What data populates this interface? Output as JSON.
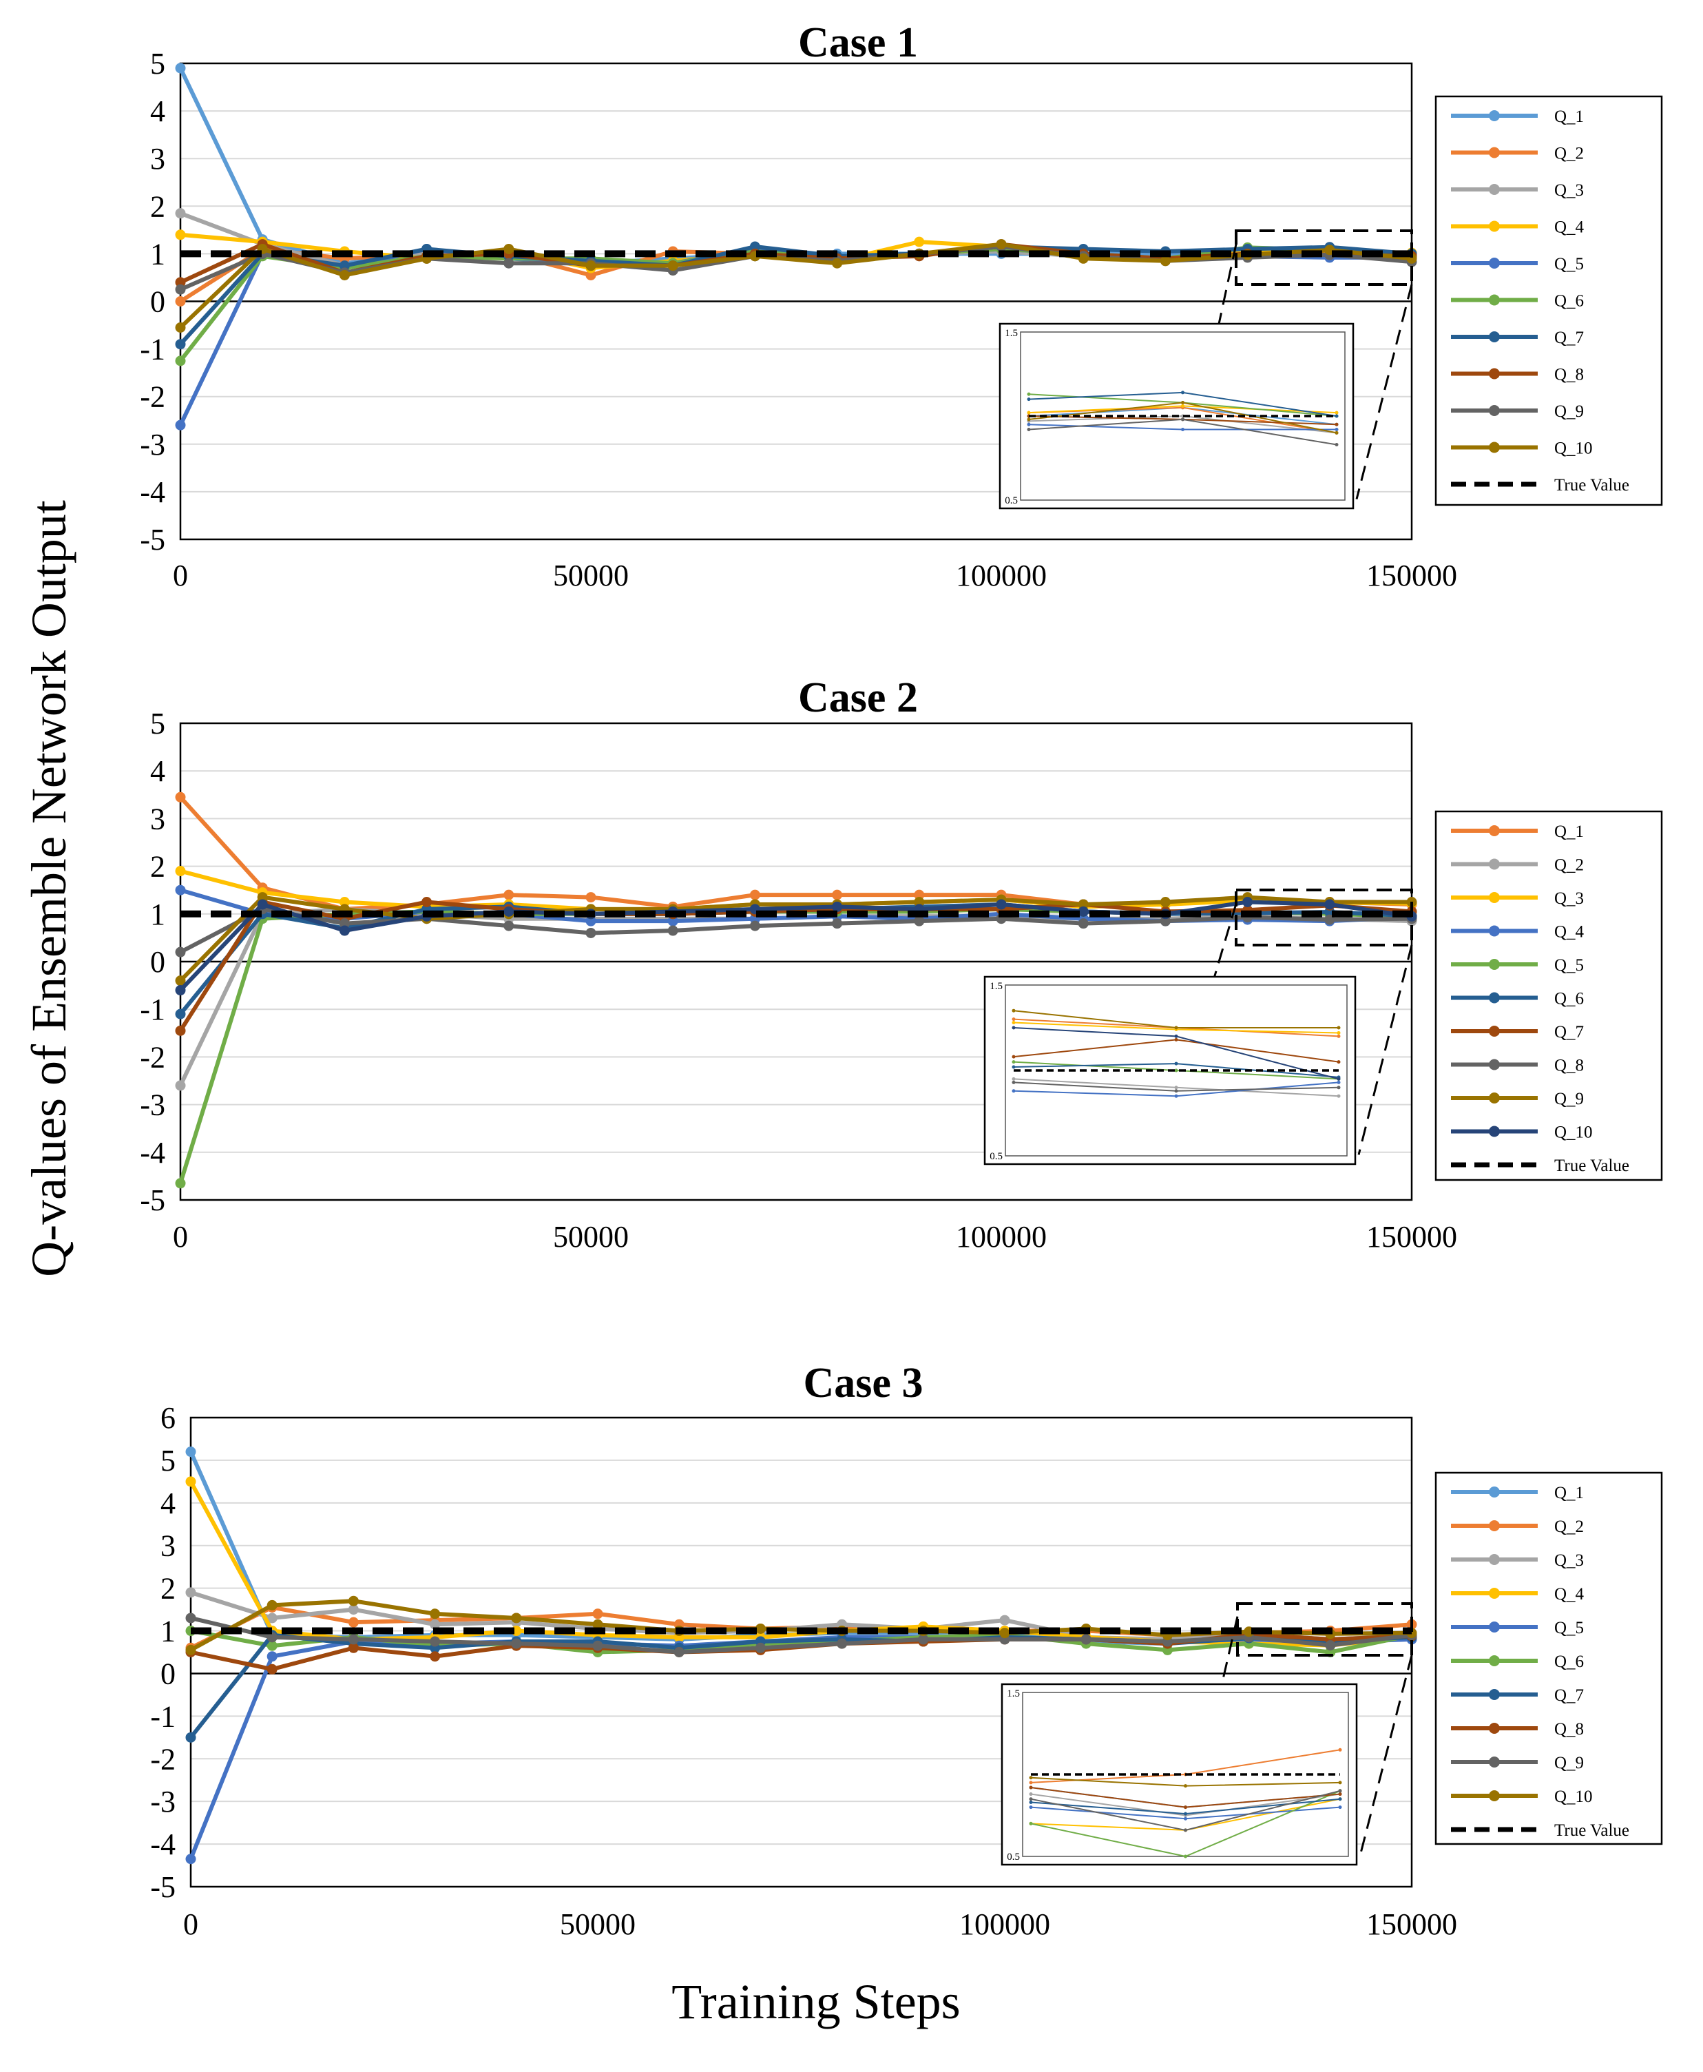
{
  "figure": {
    "ylabel": "Q-values of Ensemble Network Output",
    "xlabel": "Training Steps"
  },
  "chart_data": [
    {
      "type": "line",
      "title": "Case 1",
      "x": [
        0,
        10000,
        20000,
        30000,
        40000,
        50000,
        60000,
        70000,
        80000,
        90000,
        100000,
        110000,
        120000,
        130000,
        140000,
        150000
      ],
      "ylim": [
        -5,
        5
      ],
      "yticks": [
        -5,
        -4,
        -3,
        -2,
        -1,
        0,
        1,
        2,
        3,
        4,
        5
      ],
      "xlim": [
        0,
        150000
      ],
      "xticks": [
        0,
        50000,
        100000,
        150000
      ],
      "grid": true,
      "legend_position": "right",
      "true_value": 1,
      "true_value_label": "True Value",
      "inset": {
        "x_from": 130000,
        "ylim": [
          0.5,
          1.5
        ],
        "y_tick_labels": [
          "1.5",
          "0.5"
        ]
      },
      "series": [
        {
          "name": "Q_1",
          "color": "#5b9bd5",
          "values": [
            4.9,
            1.3,
            0.8,
            1.0,
            0.9,
            0.8,
            0.9,
            1.0,
            1.0,
            1.0,
            1.0,
            1.0,
            1.0,
            1.0,
            1.05,
            0.95
          ]
        },
        {
          "name": "Q_2",
          "color": "#ed7d31",
          "values": [
            0.0,
            1.1,
            0.9,
            1.0,
            1.0,
            0.55,
            1.05,
            1.0,
            0.9,
            1.0,
            1.1,
            1.0,
            0.9,
            1.02,
            1.05,
            0.9
          ]
        },
        {
          "name": "Q_3",
          "color": "#a5a5a5",
          "values": [
            1.85,
            1.2,
            0.75,
            1.0,
            0.95,
            0.8,
            0.8,
            1.0,
            0.9,
            1.0,
            1.05,
            0.95,
            0.9,
            0.97,
            1.0,
            0.9
          ]
        },
        {
          "name": "Q_4",
          "color": "#ffc000",
          "values": [
            1.4,
            1.25,
            1.05,
            0.9,
            1.05,
            0.7,
            0.85,
            1.0,
            0.85,
            1.25,
            1.15,
            1.0,
            0.9,
            1.02,
            1.06,
            1.02
          ]
        },
        {
          "name": "Q_5",
          "color": "#4472c4",
          "values": [
            -2.6,
            1.0,
            0.7,
            1.1,
            0.9,
            0.85,
            0.8,
            1.1,
            0.9,
            1.0,
            1.1,
            1.0,
            0.9,
            0.95,
            0.92,
            0.92
          ]
        },
        {
          "name": "Q_6",
          "color": "#70ad47",
          "values": [
            -1.25,
            0.95,
            0.7,
            0.95,
            0.9,
            0.9,
            0.8,
            1.05,
            0.9,
            1.0,
            1.1,
            1.0,
            0.9,
            1.13,
            1.08,
            1.0
          ]
        },
        {
          "name": "Q_7",
          "color": "#255e91",
          "values": [
            -0.9,
            1.0,
            0.75,
            1.1,
            0.95,
            0.85,
            0.75,
            1.15,
            0.95,
            1.0,
            1.15,
            1.1,
            1.05,
            1.1,
            1.14,
            1.0
          ]
        },
        {
          "name": "Q_8",
          "color": "#9e480e",
          "values": [
            0.4,
            1.2,
            0.6,
            0.95,
            1.0,
            0.75,
            0.75,
            1.0,
            0.9,
            0.95,
            1.2,
            1.0,
            0.9,
            1.0,
            0.98,
            0.95
          ]
        },
        {
          "name": "Q_9",
          "color": "#636363",
          "values": [
            0.25,
            1.0,
            0.6,
            0.9,
            0.8,
            0.8,
            0.65,
            0.95,
            0.85,
            1.0,
            1.15,
            0.95,
            0.85,
            0.92,
            0.98,
            0.83
          ]
        },
        {
          "name": "Q_10",
          "color": "#997300",
          "values": [
            -0.55,
            1.1,
            0.55,
            0.9,
            1.1,
            0.75,
            0.75,
            0.95,
            0.8,
            1.0,
            1.2,
            0.9,
            0.85,
            0.98,
            1.08,
            0.9
          ]
        }
      ]
    },
    {
      "type": "line",
      "title": "Case 2",
      "x": [
        0,
        10000,
        20000,
        30000,
        40000,
        50000,
        60000,
        70000,
        80000,
        90000,
        100000,
        110000,
        120000,
        130000,
        140000,
        150000
      ],
      "ylim": [
        -5,
        5
      ],
      "yticks": [
        -5,
        -4,
        -3,
        -2,
        -1,
        0,
        1,
        2,
        3,
        4,
        5
      ],
      "xlim": [
        0,
        150000
      ],
      "xticks": [
        0,
        50000,
        100000,
        150000
      ],
      "grid": true,
      "legend_position": "right",
      "true_value": 1,
      "true_value_label": "True Value",
      "inset": {
        "x_from": 130000,
        "ylim": [
          0.5,
          1.5
        ],
        "y_tick_labels": [
          "1.5",
          "0.5"
        ]
      },
      "series": [
        {
          "name": "Q_1",
          "color": "#ed7d31",
          "values": [
            3.45,
            1.55,
            1.1,
            1.2,
            1.4,
            1.35,
            1.15,
            1.4,
            1.4,
            1.4,
            1.4,
            1.2,
            1.2,
            1.3,
            1.25,
            1.2
          ]
        },
        {
          "name": "Q_2",
          "color": "#a5a5a5",
          "values": [
            -2.6,
            1.0,
            1.1,
            1.0,
            0.9,
            0.9,
            0.9,
            0.9,
            0.95,
            0.95,
            0.95,
            0.9,
            0.9,
            0.95,
            0.9,
            0.85
          ]
        },
        {
          "name": "Q_3",
          "color": "#ffc000",
          "values": [
            1.9,
            1.45,
            1.25,
            1.15,
            1.2,
            1.1,
            1.1,
            1.2,
            1.2,
            1.25,
            1.3,
            1.15,
            1.2,
            1.28,
            1.24,
            1.22
          ]
        },
        {
          "name": "Q_4",
          "color": "#4472c4",
          "values": [
            1.5,
            1.0,
            0.9,
            1.05,
            1.0,
            0.85,
            0.85,
            0.9,
            0.95,
            0.9,
            1.0,
            0.9,
            0.85,
            0.88,
            0.85,
            0.93
          ]
        },
        {
          "name": "Q_5",
          "color": "#70ad47",
          "values": [
            -4.65,
            0.9,
            1.0,
            1.05,
            1.0,
            1.0,
            1.0,
            1.05,
            1.05,
            1.05,
            1.1,
            1.05,
            1.0,
            1.05,
            1.0,
            0.95
          ]
        },
        {
          "name": "Q_6",
          "color": "#255e91",
          "values": [
            -1.1,
            1.0,
            0.7,
            1.1,
            1.15,
            1.0,
            1.0,
            1.05,
            1.1,
            1.15,
            1.2,
            1.05,
            1.0,
            1.02,
            1.04,
            0.96
          ]
        },
        {
          "name": "Q_7",
          "color": "#9e480e",
          "values": [
            -1.45,
            1.25,
            0.9,
            1.25,
            1.1,
            1.0,
            1.0,
            1.05,
            1.1,
            1.1,
            1.1,
            1.2,
            1.05,
            1.08,
            1.18,
            1.05
          ]
        },
        {
          "name": "Q_8",
          "color": "#636363",
          "values": [
            0.2,
            1.1,
            0.8,
            0.9,
            0.75,
            0.6,
            0.65,
            0.75,
            0.8,
            0.85,
            0.9,
            0.8,
            0.85,
            0.93,
            0.88,
            0.9
          ]
        },
        {
          "name": "Q_9",
          "color": "#997300",
          "values": [
            -0.4,
            1.35,
            1.1,
            0.9,
            1.0,
            1.1,
            1.1,
            1.2,
            1.2,
            1.25,
            1.3,
            1.2,
            1.25,
            1.35,
            1.25,
            1.25
          ]
        },
        {
          "name": "Q_10",
          "color": "#264478",
          "values": [
            -0.6,
            1.2,
            0.65,
            0.95,
            1.05,
            1.0,
            1.05,
            1.1,
            1.15,
            1.1,
            1.2,
            1.05,
            1.0,
            1.25,
            1.2,
            0.95
          ]
        }
      ]
    },
    {
      "type": "line",
      "title": "Case 3",
      "x": [
        0,
        10000,
        20000,
        30000,
        40000,
        50000,
        60000,
        70000,
        80000,
        90000,
        100000,
        110000,
        120000,
        130000,
        140000,
        150000
      ],
      "ylim": [
        -5,
        6
      ],
      "yticks": [
        -5,
        -4,
        -3,
        -2,
        -1,
        0,
        1,
        2,
        3,
        4,
        5,
        6
      ],
      "xlim": [
        0,
        150000
      ],
      "xticks": [
        0,
        50000,
        100000,
        150000
      ],
      "grid": true,
      "legend_position": "right",
      "true_value": 1,
      "true_value_label": "True Value",
      "inset": {
        "x_from": 130000,
        "ylim": [
          0.5,
          1.5
        ],
        "y_tick_labels": [
          "1.5",
          "0.5"
        ]
      },
      "series": [
        {
          "name": "Q_1",
          "color": "#5b9bd5",
          "values": [
            5.2,
            0.9,
            0.85,
            0.9,
            0.9,
            0.85,
            0.8,
            0.9,
            0.95,
            0.95,
            1.0,
            0.75,
            0.7,
            0.92,
            0.8,
            0.88
          ]
        },
        {
          "name": "Q_2",
          "color": "#ed7d31",
          "values": [
            0.6,
            1.55,
            1.2,
            1.25,
            1.3,
            1.4,
            1.15,
            1.05,
            1.1,
            1.05,
            1.0,
            1.0,
            0.9,
            0.95,
            1.0,
            1.15
          ]
        },
        {
          "name": "Q_3",
          "color": "#a5a5a5",
          "values": [
            1.9,
            1.3,
            1.5,
            1.15,
            1.2,
            1.05,
            0.95,
            1.0,
            1.15,
            1.05,
            1.25,
            0.85,
            0.8,
            0.88,
            0.75,
            0.88
          ]
        },
        {
          "name": "Q_4",
          "color": "#ffc000",
          "values": [
            4.5,
            1.0,
            0.8,
            0.85,
            1.0,
            0.9,
            0.85,
            0.85,
            1.0,
            1.1,
            1.0,
            0.85,
            0.75,
            0.7,
            0.66,
            0.85
          ]
        },
        {
          "name": "Q_5",
          "color": "#4472c4",
          "values": [
            -4.35,
            0.4,
            0.75,
            0.7,
            0.75,
            0.7,
            0.65,
            0.75,
            0.85,
            0.85,
            0.85,
            0.8,
            0.75,
            0.8,
            0.73,
            0.8
          ]
        },
        {
          "name": "Q_6",
          "color": "#70ad47",
          "values": [
            1.0,
            0.65,
            0.85,
            0.65,
            0.7,
            0.5,
            0.55,
            0.7,
            0.75,
            0.85,
            0.9,
            0.7,
            0.55,
            0.7,
            0.5,
            0.9
          ]
        },
        {
          "name": "Q_7",
          "color": "#255e91",
          "values": [
            -1.5,
            0.9,
            0.7,
            0.6,
            0.75,
            0.75,
            0.6,
            0.75,
            0.8,
            0.75,
            0.85,
            0.8,
            0.7,
            0.83,
            0.76,
            0.85
          ]
        },
        {
          "name": "Q_8",
          "color": "#9e480e",
          "values": [
            0.5,
            0.1,
            0.6,
            0.4,
            0.65,
            0.6,
            0.5,
            0.55,
            0.7,
            0.75,
            0.8,
            0.8,
            0.7,
            0.92,
            0.8,
            0.88
          ]
        },
        {
          "name": "Q_9",
          "color": "#636363",
          "values": [
            1.3,
            0.85,
            0.8,
            0.75,
            0.7,
            0.65,
            0.5,
            0.6,
            0.7,
            0.8,
            0.8,
            0.8,
            0.75,
            0.85,
            0.66,
            0.9
          ]
        },
        {
          "name": "Q_10",
          "color": "#997300",
          "values": [
            0.55,
            1.6,
            1.7,
            1.4,
            1.3,
            1.15,
            1.0,
            1.05,
            1.0,
            1.0,
            0.95,
            1.05,
            0.9,
            0.98,
            0.93,
            0.95
          ]
        }
      ]
    }
  ]
}
